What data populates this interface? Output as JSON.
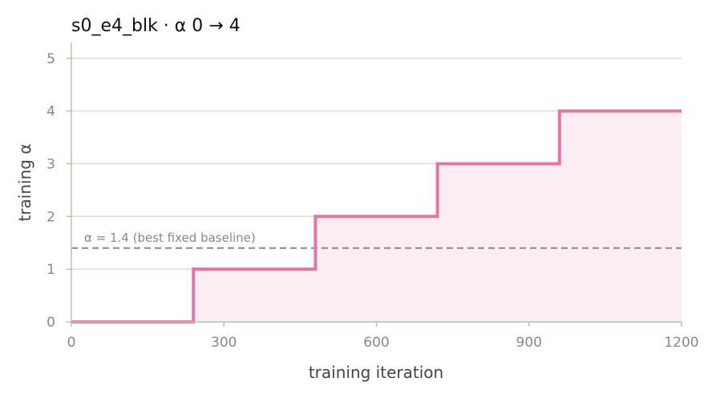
{
  "chart_data": {
    "type": "line",
    "title": "s0_e4_blk   ·   α 0 → 4",
    "xlabel": "training iteration",
    "ylabel": "training α",
    "xlim": [
      0,
      1200
    ],
    "ylim": [
      0,
      5.3
    ],
    "xticks": [
      0,
      300,
      600,
      900,
      1200
    ],
    "yticks": [
      0,
      1,
      2,
      3,
      4,
      5
    ],
    "grid": "horizontal",
    "colors": {
      "series": "#e377a4",
      "fill": "#fcedf3",
      "baseline": "#8a8a8a",
      "grid": "#deded0",
      "axis": "#bdbdb0"
    },
    "series": [
      {
        "step": "post",
        "x": [
          0,
          240,
          480,
          720,
          960,
          1200
        ],
        "y": [
          0,
          1,
          2,
          3,
          4,
          4
        ]
      }
    ],
    "annotations": [
      {
        "type": "hline",
        "y": 1.4,
        "style": "dashed",
        "text": "α = 1.4 (best fixed baseline)"
      }
    ]
  }
}
